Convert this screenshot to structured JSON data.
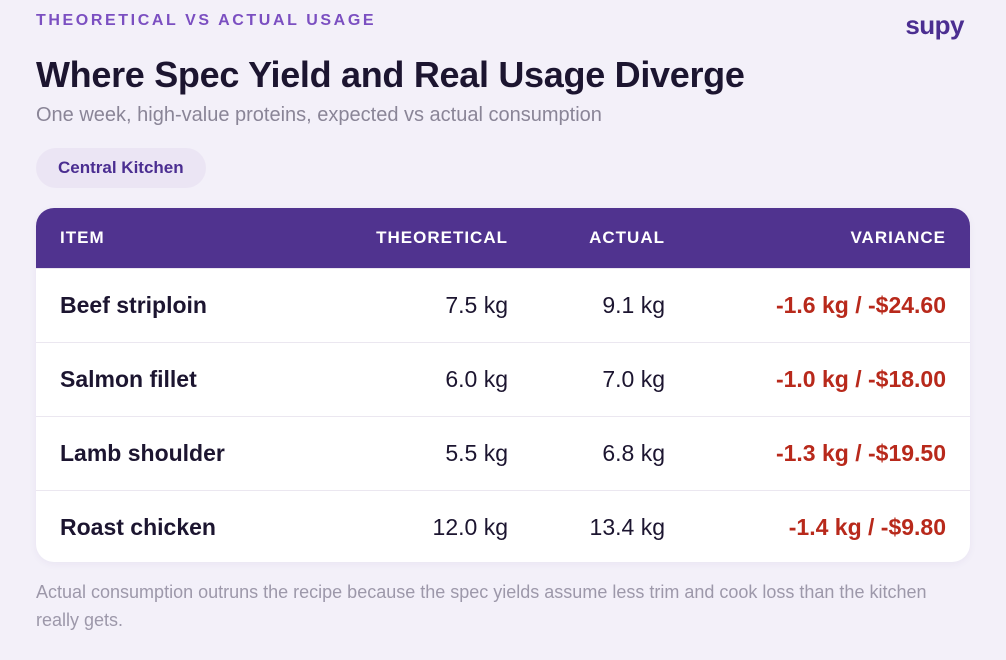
{
  "header": {
    "eyebrow": "THEORETICAL VS ACTUAL USAGE",
    "logo": "supy",
    "title": "Where Spec Yield and Real Usage Diverge",
    "subtitle": "One week, high-value proteins, expected vs actual consumption"
  },
  "filter": {
    "location": "Central Kitchen"
  },
  "table": {
    "columns": {
      "item": "ITEM",
      "theoretical": "THEORETICAL",
      "actual": "ACTUAL",
      "variance": "VARIANCE"
    },
    "rows": [
      {
        "item": "Beef striploin",
        "theoretical": "7.5 kg",
        "actual": "9.1 kg",
        "variance": "-1.6 kg / -$24.60"
      },
      {
        "item": "Salmon fillet",
        "theoretical": "6.0 kg",
        "actual": "7.0 kg",
        "variance": "-1.0 kg / -$18.00"
      },
      {
        "item": "Lamb shoulder",
        "theoretical": "5.5 kg",
        "actual": "6.8 kg",
        "variance": "-1.3 kg / -$19.50"
      },
      {
        "item": "Roast chicken",
        "theoretical": "12.0 kg",
        "actual": "13.4 kg",
        "variance": "-1.4 kg / -$9.80"
      }
    ]
  },
  "footnote": "Actual consumption outruns the recipe because the spec yields assume less trim and cook loss than the kitchen really gets.",
  "colors": {
    "background": "#f3f0f9",
    "accent": "#50338f",
    "eyebrow": "#7b4fc1",
    "negative": "#b8291b"
  }
}
